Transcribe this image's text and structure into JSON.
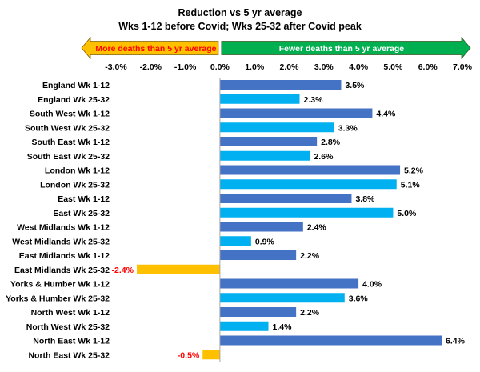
{
  "chart_data": {
    "type": "bar",
    "orientation": "horizontal",
    "title": "Reduction vs 5 yr average",
    "subtitle": "Wks 1-12 before Covid; Wks 25-32 after Covid peak",
    "xlim": [
      -0.03,
      0.07
    ],
    "xticks": [
      -0.03,
      -0.02,
      -0.01,
      0,
      0.01,
      0.02,
      0.03,
      0.04,
      0.05,
      0.06,
      0.07
    ],
    "xtick_labels": [
      "-3.0%",
      "-2.0%",
      "-1.0%",
      "0.0%",
      "1.0%",
      "2.0%",
      "3.0%",
      "4.0%",
      "5.0%",
      "6.0%",
      "7.0%"
    ],
    "grid": false,
    "legend": "none",
    "categories": [
      "England Wk 1-12",
      "England Wk 25-32",
      "South West Wk 1-12",
      "South West Wk 25-32",
      "South East Wk 1-12",
      "South East Wk 25-32",
      "London Wk 1-12",
      "London Wk 25-32",
      "East Wk 1-12",
      "East Wk 25-32",
      "West Midlands Wk 1-12",
      "West Midlands Wk 25-32",
      "East Midlands Wk 1-12",
      "East Midlands Wk 25-32",
      "Yorks & Humber Wk 1-12",
      "Yorks & Humber Wk 25-32",
      "North West Wk 1-12",
      "North West Wk 25-32",
      "North East Wk 1-12",
      "North East Wk 25-32"
    ],
    "values": [
      0.035,
      0.023,
      0.044,
      0.033,
      0.028,
      0.026,
      0.052,
      0.051,
      0.038,
      0.05,
      0.024,
      0.009,
      0.022,
      -0.024,
      0.04,
      0.036,
      0.022,
      0.014,
      0.064,
      -0.005
    ],
    "data_labels": [
      "3.5%",
      "2.3%",
      "4.4%",
      "3.3%",
      "2.8%",
      "2.6%",
      "5.2%",
      "5.1%",
      "3.8%",
      "5.0%",
      "2.4%",
      "0.9%",
      "2.2%",
      "-2.4%",
      "4.0%",
      "3.6%",
      "2.2%",
      "1.4%",
      "6.4%",
      "-0.5%"
    ],
    "annotations": {
      "left_arrow": {
        "text": "More deaths than 5 yr average",
        "color": "#ffc000",
        "text_color": "#ff0000"
      },
      "right_arrow": {
        "text": "Fewer deaths than 5 yr average",
        "color": "#00b050",
        "text_color": "#ffffff"
      }
    },
    "colors": {
      "wk_1_12": "#4472c4",
      "wk_25_32": "#00b0f0",
      "negative": "#ffc000",
      "negative_label": "#ff0000",
      "positive_label": "#000000"
    }
  }
}
